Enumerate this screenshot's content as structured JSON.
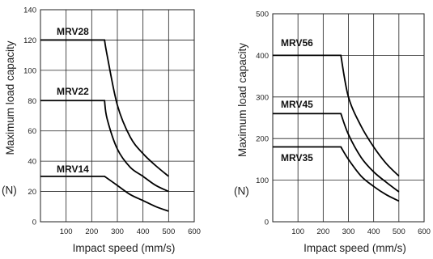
{
  "chart_data": [
    {
      "type": "line",
      "xlabel": "Impact speed (mm/s)",
      "ylabel": "Maximum load capacity",
      "yunit": "(N)",
      "xlim": [
        0,
        600
      ],
      "ylim": [
        0,
        140
      ],
      "xticks": [
        "100",
        "200",
        "300",
        "400",
        "500",
        "600"
      ],
      "yticks": [
        "0",
        "20",
        "40",
        "60",
        "80",
        "100",
        "120",
        "140"
      ],
      "grid": true,
      "series": [
        {
          "name": "MRV28",
          "x": [
            0,
            250,
            260,
            300,
            350,
            400,
            450,
            500
          ],
          "y": [
            120,
            120,
            110,
            77,
            56,
            45,
            37,
            30
          ]
        },
        {
          "name": "MRV22",
          "x": [
            0,
            250,
            260,
            300,
            350,
            400,
            450,
            500
          ],
          "y": [
            80,
            80,
            68,
            48,
            36,
            30,
            24,
            20
          ]
        },
        {
          "name": "MRV14",
          "x": [
            0,
            250,
            300,
            350,
            400,
            450,
            500
          ],
          "y": [
            30,
            30,
            24,
            18,
            14,
            10,
            7
          ]
        }
      ]
    },
    {
      "type": "line",
      "xlabel": "Impact speed (mm/s)",
      "ylabel": "Maximum load capacity",
      "yunit": "(N)",
      "xlim": [
        0,
        600
      ],
      "ylim": [
        0,
        500
      ],
      "xticks": [
        "100",
        "200",
        "300",
        "400",
        "500",
        "600"
      ],
      "yticks": [
        "0",
        "100",
        "200",
        "300",
        "400",
        "500"
      ],
      "grid": true,
      "series": [
        {
          "name": "MRV56",
          "x": [
            0,
            270,
            300,
            350,
            400,
            450,
            500
          ],
          "y": [
            400,
            400,
            300,
            230,
            180,
            140,
            110
          ]
        },
        {
          "name": "MRV45",
          "x": [
            0,
            270,
            300,
            350,
            400,
            450,
            500
          ],
          "y": [
            260,
            260,
            210,
            155,
            120,
            95,
            72
          ]
        },
        {
          "name": "MRV35",
          "x": [
            0,
            270,
            300,
            350,
            400,
            450,
            500
          ],
          "y": [
            180,
            180,
            150,
            110,
            85,
            65,
            50
          ]
        }
      ]
    }
  ]
}
